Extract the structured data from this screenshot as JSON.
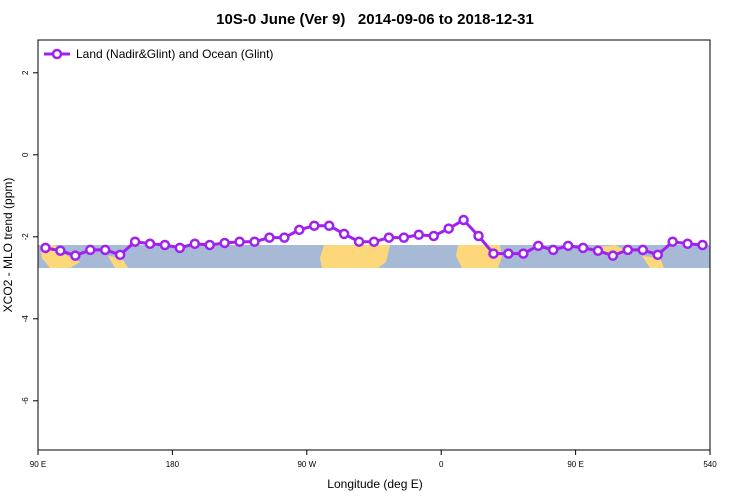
{
  "chart_data": {
    "type": "line",
    "title": "10S-0 June (Ver 9)   2014-09-06 to 2018-12-31",
    "xlabel": "Longitude (deg E)",
    "ylabel": "XCO2 - MLO trend (ppm)",
    "x": [
      95,
      105,
      115,
      125,
      135,
      145,
      155,
      165,
      175,
      185,
      195,
      205,
      215,
      225,
      235,
      245,
      255,
      265,
      275,
      285,
      295,
      305,
      315,
      325,
      335,
      345,
      355,
      365,
      375,
      385,
      395,
      405,
      415,
      425,
      435,
      445,
      455,
      465,
      475,
      485,
      495,
      505,
      515,
      525,
      535
    ],
    "series": [
      {
        "name": "Land (Nadir&Glint) and Ocean (Glint)",
        "color": "#a020f0",
        "values": [
          -2.27,
          -2.34,
          -2.46,
          -2.32,
          -2.32,
          -2.44,
          -2.12,
          -2.17,
          -2.2,
          -2.27,
          -2.17,
          -2.2,
          -2.15,
          -2.12,
          -2.12,
          -2.02,
          -2.02,
          -1.83,
          -1.73,
          -1.73,
          -1.93,
          -2.12,
          -2.12,
          -2.02,
          -2.02,
          -1.95,
          -1.98,
          -1.8,
          -1.59,
          -1.98,
          -2.41,
          -2.41,
          -2.41,
          -2.22,
          -2.32,
          -2.22,
          -2.27,
          -2.34,
          -2.46,
          -2.32,
          -2.32,
          -2.44,
          -2.12,
          -2.17,
          -2.2
        ]
      }
    ],
    "xlim": [
      90,
      540
    ],
    "xticks": [
      {
        "value": 90,
        "label": "90 E"
      },
      180,
      {
        "value": 270,
        "label": "90 W"
      },
      {
        "value": 360,
        "label": "0"
      },
      {
        "value": 450,
        "label": "90 E"
      },
      540
    ],
    "ylim": [
      -7.2,
      2.8
    ],
    "yticks": [
      -6,
      -4,
      -2,
      0,
      2
    ],
    "legend": "top-left"
  }
}
